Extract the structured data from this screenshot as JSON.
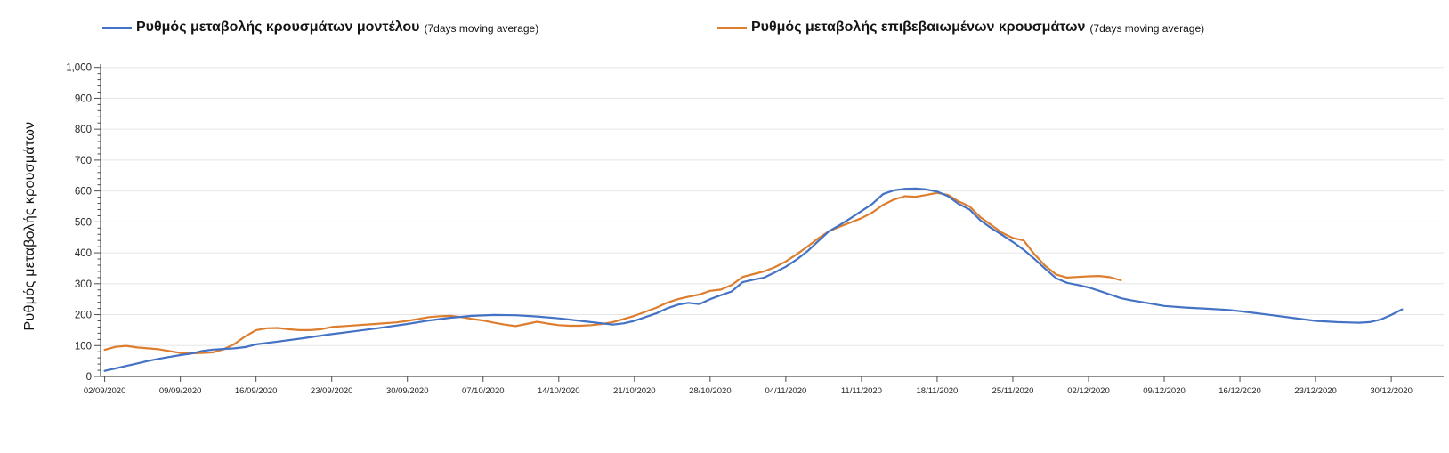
{
  "legend": {
    "items": [
      {
        "id": "model",
        "label": "Ρυθμός μεταβολής κρουσμάτων μοντέλου",
        "suffix": "(7days moving average)",
        "color": "#4472C4"
      },
      {
        "id": "confirmed",
        "label": "Ρυθμός μεταβολής επιβεβαιωμένων κρουσμάτων",
        "suffix": "(7days moving average)",
        "color": "#DD7E2F"
      }
    ]
  },
  "axes": {
    "y_title": "Ρυθμός μεταβολής κρουσμάτων"
  },
  "chart_data": {
    "type": "line",
    "title": "",
    "xlabel": "",
    "ylabel": "Ρυθμός μεταβολής κρουσμάτων",
    "ylim": [
      0,
      1000
    ],
    "y_tick_step": 100,
    "y_minor_tick_step": 20,
    "grid": "horizontal",
    "legend_position": "top",
    "x_start_date": "02/09/2020",
    "x_end_date": "31/12/2020",
    "days_per_tick": 7,
    "y_tick_labels": [
      "0",
      "100",
      "200",
      "300",
      "400",
      "500",
      "600",
      "700",
      "800",
      "900",
      "1,000"
    ],
    "y_tick_values": [
      0,
      100,
      200,
      300,
      400,
      500,
      600,
      700,
      800,
      900,
      1000
    ],
    "x_tick_labels": [
      "02/09/2020",
      "09/09/2020",
      "16/09/2020",
      "23/09/2020",
      "30/09/2020",
      "07/10/2020",
      "14/10/2020",
      "21/10/2020",
      "28/10/2020",
      "04/11/2020",
      "11/11/2020",
      "18/11/2020",
      "25/11/2020",
      "02/12/2020",
      "09/12/2020",
      "16/12/2020",
      "23/12/2020",
      "30/12/2020"
    ],
    "series": [
      {
        "name": "Ρυθμός μεταβολής επιβεβαιωμένων κρουσμάτων (7days moving average)",
        "color": "#DD7E2F",
        "points_day_value": [
          [
            0,
            86
          ],
          [
            1,
            96
          ],
          [
            2,
            99
          ],
          [
            3,
            94
          ],
          [
            4,
            91
          ],
          [
            5,
            88
          ],
          [
            6,
            82
          ],
          [
            7,
            76
          ],
          [
            8,
            75
          ],
          [
            9,
            76
          ],
          [
            10,
            78
          ],
          [
            11,
            88
          ],
          [
            12,
            105
          ],
          [
            13,
            130
          ],
          [
            14,
            150
          ],
          [
            15,
            156
          ],
          [
            16,
            157
          ],
          [
            17,
            153
          ],
          [
            18,
            150
          ],
          [
            19,
            150
          ],
          [
            20,
            153
          ],
          [
            21,
            160
          ],
          [
            23,
            165
          ],
          [
            25,
            170
          ],
          [
            27,
            175
          ],
          [
            28,
            180
          ],
          [
            29,
            186
          ],
          [
            30,
            192
          ],
          [
            31,
            195
          ],
          [
            32,
            196
          ],
          [
            33,
            192
          ],
          [
            34,
            186
          ],
          [
            35,
            181
          ],
          [
            36,
            174
          ],
          [
            37,
            168
          ],
          [
            38,
            163
          ],
          [
            39,
            170
          ],
          [
            40,
            177
          ],
          [
            41,
            171
          ],
          [
            42,
            166
          ],
          [
            43,
            164
          ],
          [
            44,
            164
          ],
          [
            45,
            166
          ],
          [
            46,
            170
          ],
          [
            47,
            176
          ],
          [
            48,
            186
          ],
          [
            49,
            196
          ],
          [
            50,
            209
          ],
          [
            51,
            222
          ],
          [
            52,
            238
          ],
          [
            53,
            250
          ],
          [
            54,
            258
          ],
          [
            55,
            265
          ],
          [
            56,
            277
          ],
          [
            57,
            281
          ],
          [
            58,
            296
          ],
          [
            59,
            322
          ],
          [
            60,
            331
          ],
          [
            61,
            340
          ],
          [
            62,
            354
          ],
          [
            63,
            372
          ],
          [
            64,
            395
          ],
          [
            65,
            420
          ],
          [
            66,
            447
          ],
          [
            67,
            470
          ],
          [
            68,
            485
          ],
          [
            69,
            498
          ],
          [
            70,
            512
          ],
          [
            71,
            530
          ],
          [
            72,
            555
          ],
          [
            73,
            572
          ],
          [
            74,
            583
          ],
          [
            75,
            581
          ],
          [
            76,
            587
          ],
          [
            77,
            594
          ],
          [
            78,
            587
          ],
          [
            79,
            566
          ],
          [
            80,
            550
          ],
          [
            81,
            515
          ],
          [
            82,
            490
          ],
          [
            83,
            465
          ],
          [
            84,
            448
          ],
          [
            85,
            440
          ],
          [
            86,
            395
          ],
          [
            87,
            358
          ],
          [
            88,
            330
          ],
          [
            89,
            320
          ],
          [
            90,
            322
          ],
          [
            91,
            324
          ],
          [
            92,
            325
          ],
          [
            93,
            321
          ],
          [
            94,
            311
          ]
        ]
      },
      {
        "name": "Ρυθμός μεταβολής κρουσμάτων μοντέλου (7days moving average)",
        "color": "#4472C4",
        "points_day_value": [
          [
            0,
            18
          ],
          [
            1,
            26
          ],
          [
            2,
            34
          ],
          [
            3,
            42
          ],
          [
            4,
            50
          ],
          [
            5,
            57
          ],
          [
            6,
            63
          ],
          [
            7,
            69
          ],
          [
            8,
            74
          ],
          [
            9,
            82
          ],
          [
            10,
            87
          ],
          [
            11,
            89
          ],
          [
            12,
            91
          ],
          [
            13,
            95
          ],
          [
            14,
            104
          ],
          [
            16,
            113
          ],
          [
            18,
            122
          ],
          [
            21,
            137
          ],
          [
            23,
            146
          ],
          [
            25,
            155
          ],
          [
            28,
            170
          ],
          [
            30,
            181
          ],
          [
            32,
            190
          ],
          [
            34,
            196
          ],
          [
            36,
            199
          ],
          [
            38,
            198
          ],
          [
            40,
            194
          ],
          [
            42,
            188
          ],
          [
            44,
            180
          ],
          [
            46,
            172
          ],
          [
            47,
            168
          ],
          [
            48,
            172
          ],
          [
            49,
            180
          ],
          [
            50,
            192
          ],
          [
            51,
            204
          ],
          [
            52,
            220
          ],
          [
            53,
            232
          ],
          [
            54,
            238
          ],
          [
            55,
            234
          ],
          [
            56,
            250
          ],
          [
            57,
            263
          ],
          [
            58,
            275
          ],
          [
            59,
            305
          ],
          [
            60,
            313
          ],
          [
            61,
            320
          ],
          [
            62,
            337
          ],
          [
            63,
            355
          ],
          [
            64,
            378
          ],
          [
            65,
            405
          ],
          [
            66,
            438
          ],
          [
            67,
            470
          ],
          [
            68,
            490
          ],
          [
            69,
            512
          ],
          [
            70,
            535
          ],
          [
            71,
            558
          ],
          [
            72,
            590
          ],
          [
            73,
            602
          ],
          [
            74,
            607
          ],
          [
            75,
            608
          ],
          [
            76,
            605
          ],
          [
            77,
            598
          ],
          [
            78,
            583
          ],
          [
            79,
            558
          ],
          [
            80,
            540
          ],
          [
            81,
            505
          ],
          [
            82,
            480
          ],
          [
            83,
            458
          ],
          [
            84,
            435
          ],
          [
            85,
            410
          ],
          [
            86,
            380
          ],
          [
            87,
            348
          ],
          [
            88,
            318
          ],
          [
            89,
            303
          ],
          [
            90,
            296
          ],
          [
            91,
            288
          ],
          [
            92,
            277
          ],
          [
            93,
            265
          ],
          [
            94,
            253
          ],
          [
            95,
            246
          ],
          [
            96,
            240
          ],
          [
            97,
            234
          ],
          [
            98,
            228
          ],
          [
            100,
            223
          ],
          [
            102,
            219
          ],
          [
            104,
            215
          ],
          [
            106,
            207
          ],
          [
            108,
            198
          ],
          [
            110,
            189
          ],
          [
            112,
            180
          ],
          [
            114,
            176
          ],
          [
            116,
            174
          ],
          [
            117,
            176
          ],
          [
            118,
            184
          ],
          [
            119,
            199
          ],
          [
            120,
            217
          ]
        ]
      }
    ],
    "style": {
      "gridline_color": "#E5E5E5",
      "axis_color": "#4D4D4D",
      "tick_text_color": "#262626",
      "line_width": 2.2
    }
  }
}
